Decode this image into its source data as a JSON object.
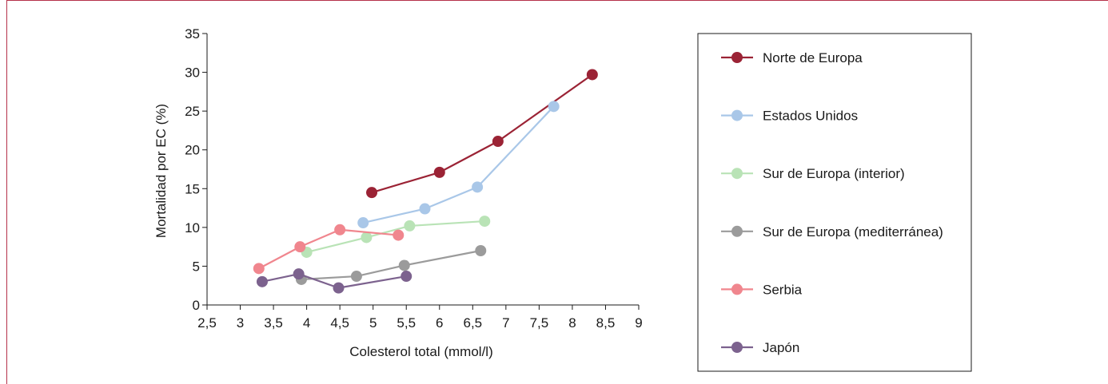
{
  "chart_data": {
    "type": "line",
    "xlabel": "Colesterol total (mmol/l)",
    "ylabel": "Mortalidad por EC (%)",
    "xlim": [
      2.5,
      9
    ],
    "ylim": [
      0,
      35
    ],
    "xticks": [
      2.5,
      3,
      3.5,
      4,
      4.5,
      5,
      5.5,
      6,
      6.5,
      7,
      7.5,
      8,
      8.5,
      9
    ],
    "xtick_labels": [
      "2,5",
      "3",
      "3,5",
      "4",
      "4,5",
      "5",
      "5,5",
      "6",
      "6,5",
      "7",
      "7,5",
      "8",
      "8,5",
      "9"
    ],
    "yticks": [
      0,
      5,
      10,
      15,
      20,
      25,
      30,
      35
    ],
    "ytick_labels": [
      "0",
      "5",
      "10",
      "15",
      "20",
      "25",
      "30",
      "35"
    ],
    "grid": false,
    "legend_position": "right",
    "series": [
      {
        "name": "Norte de Europa",
        "color": "#9b2335",
        "points": [
          [
            4.98,
            14.5
          ],
          [
            6.0,
            17.1
          ],
          [
            6.88,
            21.1
          ],
          [
            8.3,
            29.7
          ]
        ]
      },
      {
        "name": "Estados Unidos",
        "color": "#a9c7e8",
        "points": [
          [
            4.85,
            10.6
          ],
          [
            5.78,
            12.4
          ],
          [
            6.57,
            15.2
          ],
          [
            7.72,
            25.6
          ]
        ]
      },
      {
        "name": "Sur de Europa (interior)",
        "color": "#b9e3b6",
        "points": [
          [
            4.0,
            6.8
          ],
          [
            4.9,
            8.7
          ],
          [
            5.55,
            10.2
          ],
          [
            6.68,
            10.8
          ]
        ]
      },
      {
        "name": "Sur de Europa (mediterránea)",
        "color": "#9b9b9b",
        "points": [
          [
            3.92,
            3.3
          ],
          [
            4.75,
            3.7
          ],
          [
            5.47,
            5.1
          ],
          [
            6.62,
            7.0
          ]
        ]
      },
      {
        "name": "Serbia",
        "color": "#f0868e",
        "points": [
          [
            3.28,
            4.7
          ],
          [
            3.9,
            7.5
          ],
          [
            4.5,
            9.7
          ],
          [
            5.38,
            9.0
          ]
        ]
      },
      {
        "name": "Japón",
        "color": "#7c628e",
        "points": [
          [
            3.33,
            3.0
          ],
          [
            3.88,
            4.0
          ],
          [
            4.48,
            2.2
          ],
          [
            5.5,
            3.7
          ]
        ]
      }
    ]
  }
}
